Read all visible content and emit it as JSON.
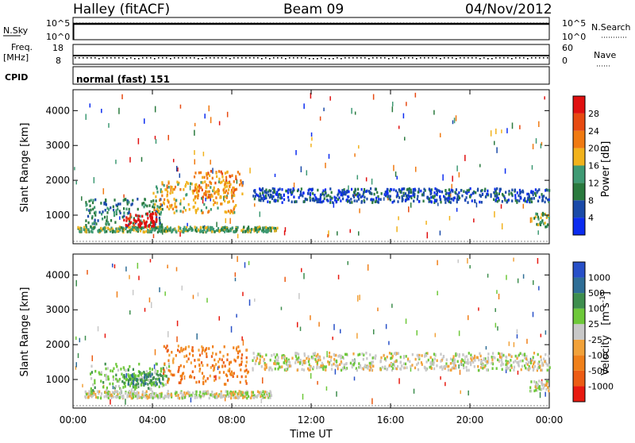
{
  "header": {
    "station": "Halley (fitACF)",
    "beam": "Beam 09",
    "date": "04/Nov/2012"
  },
  "aux_panels": {
    "nsky_label": "N.Sky",
    "nsky_ticks": [
      "10^5",
      "10^0"
    ],
    "nsearch_label": "N.Search",
    "nsearch_ticks": [
      "10^5",
      "10^0"
    ],
    "freq_label": "Freq.",
    "freq_unit": "[MHz]",
    "freq_ticks": [
      "18",
      "8"
    ],
    "nave_label": "Nave",
    "nave_ticks": [
      "60",
      "0"
    ],
    "cpid_label": "CPID",
    "cpid_value": "normal (fast) 151"
  },
  "colors": {
    "power_scale": [
      "#0b2cf0",
      "#1a4aa8",
      "#2a7a3e",
      "#3f9a74",
      "#f1b21c",
      "#f07a12",
      "#e74a12",
      "#e01010"
    ],
    "velocity_scale": [
      "#2850c8",
      "#2f6e96",
      "#3e8e4e",
      "#6ec83a",
      "#c8c8c8",
      "#f2a23a",
      "#f0801a",
      "#ec5c14",
      "#e81a10"
    ]
  },
  "chart_data": [
    {
      "type": "heatmap",
      "name_printed": "Power",
      "xlabel": "Time UT",
      "ylabel": "Slant Range [km]",
      "x_ticks": [
        "00:00",
        "04:00",
        "08:00",
        "12:00",
        "16:00",
        "20:00",
        "00:00"
      ],
      "y_ticks": [
        1000,
        2000,
        3000,
        4000
      ],
      "ylim": [
        180,
        4600
      ],
      "xlim_hours": [
        0,
        24
      ],
      "colorbar": {
        "label": "Power [dB]",
        "ticks": [
          "4",
          "8",
          "12",
          "16",
          "20",
          "24",
          "28"
        ],
        "range": [
          0,
          30
        ]
      },
      "features": [
        {
          "t0": 0.2,
          "t1": 10.3,
          "r0": 550,
          "r1": 700,
          "level": 3
        },
        {
          "t0": 0.6,
          "t1": 4.5,
          "r0": 700,
          "r1": 1500,
          "level": 2
        },
        {
          "t0": 2.5,
          "t1": 4.2,
          "r0": 700,
          "r1": 1100,
          "level": 7
        },
        {
          "t0": 4.0,
          "t1": 8.2,
          "r0": 1100,
          "r1": 2000,
          "level": 4
        },
        {
          "t0": 6.0,
          "t1": 8.5,
          "r0": 1500,
          "r1": 2300,
          "level": 5
        },
        {
          "t0": 9.0,
          "t1": 24.0,
          "r0": 1400,
          "r1": 1800,
          "level": 1
        },
        {
          "t0": 23.2,
          "t1": 24.0,
          "r0": 700,
          "r1": 1100,
          "level": 3
        }
      ]
    },
    {
      "type": "heatmap",
      "name_printed": "Velocity",
      "xlabel": "Time UT",
      "ylabel": "Slant Range [km]",
      "x_ticks": [
        "00:00",
        "04:00",
        "08:00",
        "12:00",
        "16:00",
        "20:00",
        "00:00"
      ],
      "y_ticks": [
        1000,
        2000,
        3000,
        4000
      ],
      "ylim": [
        180,
        4600
      ],
      "xlim_hours": [
        0,
        24
      ],
      "colorbar": {
        "label": "Velocity [m s^-1]",
        "ticks": [
          "1000",
          "500",
          "100",
          "25",
          "-25",
          "-100",
          "-500",
          "-1000"
        ]
      },
      "features": [
        {
          "t0": 0.5,
          "t1": 10.0,
          "r0": 500,
          "r1": 700,
          "level": 4
        },
        {
          "t0": 0.8,
          "t1": 4.8,
          "r0": 700,
          "r1": 1500,
          "level": 3
        },
        {
          "t0": 4.5,
          "t1": 8.8,
          "r0": 900,
          "r1": 2000,
          "level": 6
        },
        {
          "t0": 2.5,
          "t1": 4.5,
          "r0": 900,
          "r1": 1200,
          "level": 2
        },
        {
          "t0": 9.0,
          "t1": 24.0,
          "r0": 1300,
          "r1": 1800,
          "level": 4
        },
        {
          "t0": 23.0,
          "t1": 24.0,
          "r0": 700,
          "r1": 1000,
          "level": 4
        }
      ]
    }
  ]
}
